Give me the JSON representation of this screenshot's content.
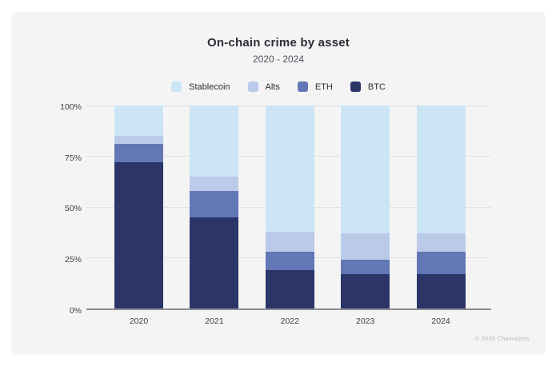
{
  "header": {
    "title": "On-chain crime by asset",
    "subtitle": "2020 - 2024"
  },
  "footer": {
    "copyright": "© 2025 Chainalysis"
  },
  "colors": {
    "card_background": "#f4f4f5",
    "page_background": "#ffffff",
    "gridline": "#e2e2e6",
    "axis_line": "#8d8d95",
    "stablecoin": "#cce5f4",
    "alts": "#bbcae9",
    "eth": "#6277b5",
    "btc": "#2b3568"
  },
  "chart_data": {
    "type": "bar",
    "stacked": true,
    "units": "percent",
    "title": "On-chain crime by asset",
    "subtitle": "2020 - 2024",
    "categories": [
      "2020",
      "2021",
      "2022",
      "2023",
      "2024"
    ],
    "series": [
      {
        "name": "BTC",
        "color": "#2b3568",
        "values": [
          72,
          45,
          19,
          17,
          17
        ]
      },
      {
        "name": "ETH",
        "color": "#6277b5",
        "values": [
          9,
          13,
          9,
          7,
          11
        ]
      },
      {
        "name": "Alts",
        "color": "#bbcae9",
        "values": [
          4,
          7,
          10,
          13,
          9
        ]
      },
      {
        "name": "Stablecoin",
        "color": "#cce5f4",
        "values": [
          15,
          35,
          62,
          63,
          63
        ]
      }
    ],
    "legend_order": [
      "Stablecoin",
      "Alts",
      "ETH",
      "BTC"
    ],
    "legend_position": "top",
    "y_ticks": [
      {
        "label": "0%",
        "value": 0
      },
      {
        "label": "25%",
        "value": 25
      },
      {
        "label": "50%",
        "value": 50
      },
      {
        "label": "75%",
        "value": 75
      },
      {
        "label": "100%",
        "value": 100
      }
    ],
    "ylim": [
      0,
      100
    ],
    "grid": true
  }
}
